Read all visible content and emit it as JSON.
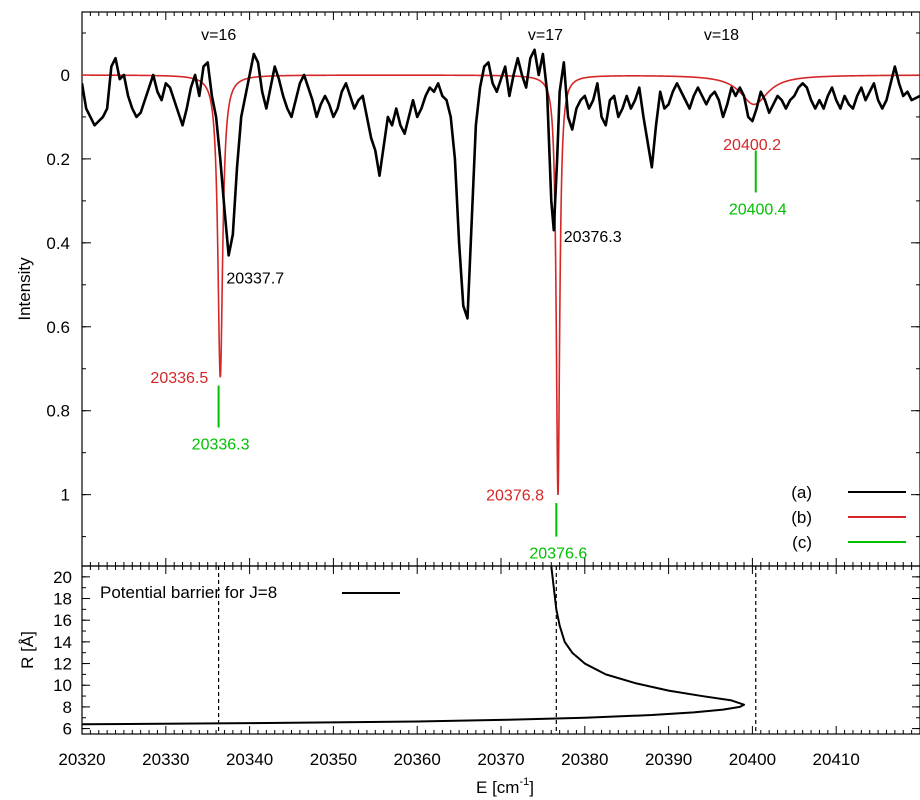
{
  "colors": {
    "a": "#000000",
    "b": "#d62728",
    "c": "#00c000",
    "axis": "#000000"
  },
  "chart_data": [
    {
      "type": "line",
      "panel": "top",
      "ylabel": "Intensity",
      "yaxis_inverted": true,
      "xlim": [
        20320,
        20420
      ],
      "ylim": [
        -0.15,
        1.17
      ],
      "yticks": [
        0,
        0.2,
        0.4,
        0.6,
        0.8,
        1
      ],
      "ytick_labels": [
        "0",
        "0.2",
        "0.4",
        "0.6",
        "0.8",
        "1"
      ],
      "grid": false,
      "legend_position": "bottom-right",
      "legend": [
        {
          "label": "(a)",
          "key": "a"
        },
        {
          "label": "(b)",
          "key": "b"
        },
        {
          "label": "(c)",
          "key": "c"
        }
      ],
      "vibrational_labels": [
        {
          "text": "v=16",
          "x": 20337.5
        },
        {
          "text": "v=17",
          "x": 20376.5
        },
        {
          "text": "v=18",
          "x": 20397.5
        }
      ],
      "series_a_peaks": [
        {
          "x": 20337.7,
          "y": 0.44,
          "label": "20337.7"
        },
        {
          "x": 20376.3,
          "y": 0.37,
          "label": "20376.3"
        }
      ],
      "series_b_lorentzians": [
        {
          "x0": 20336.5,
          "amp": 0.72,
          "gamma": 0.35,
          "label": "20336.5"
        },
        {
          "x0": 20376.8,
          "amp": 1.0,
          "gamma": 0.25,
          "label": "20376.8"
        },
        {
          "x0": 20400.2,
          "amp": 0.07,
          "gamma": 2.0,
          "label": "20400.2"
        }
      ],
      "series_c_markers": [
        {
          "x": 20336.3,
          "y_top": 0.74,
          "y_bottom": 0.84,
          "label": "20336.3"
        },
        {
          "x": 20376.6,
          "y_top": 1.02,
          "y_bottom": 1.1,
          "label": "20376.6"
        },
        {
          "x": 20400.4,
          "y_top": 0.18,
          "y_bottom": 0.28,
          "label": "20400.4"
        }
      ],
      "series_a_points": [
        [
          20320.0,
          0.02
        ],
        [
          20320.5,
          0.08
        ],
        [
          20321.0,
          0.1
        ],
        [
          20321.5,
          0.12
        ],
        [
          20322.0,
          0.11
        ],
        [
          20322.5,
          0.1
        ],
        [
          20323.0,
          0.08
        ],
        [
          20323.5,
          -0.02
        ],
        [
          20324.0,
          -0.04
        ],
        [
          20324.5,
          0.01
        ],
        [
          20325.0,
          0.0
        ],
        [
          20325.5,
          0.05
        ],
        [
          20326.0,
          0.08
        ],
        [
          20326.5,
          0.1
        ],
        [
          20327.0,
          0.09
        ],
        [
          20327.5,
          0.06
        ],
        [
          20328.0,
          0.03
        ],
        [
          20328.5,
          0.0
        ],
        [
          20329.0,
          0.04
        ],
        [
          20329.5,
          0.06
        ],
        [
          20330.0,
          0.02
        ],
        [
          20330.5,
          0.03
        ],
        [
          20331.0,
          0.06
        ],
        [
          20331.5,
          0.09
        ],
        [
          20332.0,
          0.12
        ],
        [
          20332.5,
          0.08
        ],
        [
          20333.0,
          0.03
        ],
        [
          20333.5,
          0.0
        ],
        [
          20334.0,
          0.05
        ],
        [
          20334.5,
          -0.02
        ],
        [
          20335.0,
          -0.03
        ],
        [
          20335.5,
          0.05
        ],
        [
          20336.0,
          0.1
        ],
        [
          20336.5,
          0.2
        ],
        [
          20337.0,
          0.32
        ],
        [
          20337.5,
          0.43
        ],
        [
          20338.0,
          0.38
        ],
        [
          20338.5,
          0.22
        ],
        [
          20339.0,
          0.1
        ],
        [
          20339.5,
          0.05
        ],
        [
          20340.0,
          0.0
        ],
        [
          20340.5,
          -0.05
        ],
        [
          20341.0,
          -0.03
        ],
        [
          20341.5,
          0.04
        ],
        [
          20342.0,
          0.08
        ],
        [
          20342.5,
          0.03
        ],
        [
          20343.0,
          -0.02
        ],
        [
          20343.5,
          0.01
        ],
        [
          20344.0,
          0.05
        ],
        [
          20344.5,
          0.08
        ],
        [
          20345.0,
          0.1
        ],
        [
          20345.5,
          0.06
        ],
        [
          20346.0,
          0.02
        ],
        [
          20346.5,
          0.0
        ],
        [
          20347.0,
          0.03
        ],
        [
          20347.5,
          0.06
        ],
        [
          20348.0,
          0.1
        ],
        [
          20348.5,
          0.07
        ],
        [
          20349.0,
          0.05
        ],
        [
          20349.5,
          0.07
        ],
        [
          20350.0,
          0.1
        ],
        [
          20350.5,
          0.08
        ],
        [
          20351.0,
          0.04
        ],
        [
          20351.5,
          0.02
        ],
        [
          20352.0,
          0.05
        ],
        [
          20352.5,
          0.08
        ],
        [
          20353.0,
          0.06
        ],
        [
          20353.5,
          0.05
        ],
        [
          20354.0,
          0.1
        ],
        [
          20354.5,
          0.15
        ],
        [
          20355.0,
          0.18
        ],
        [
          20355.5,
          0.24
        ],
        [
          20356.0,
          0.17
        ],
        [
          20356.5,
          0.1
        ],
        [
          20357.0,
          0.12
        ],
        [
          20357.5,
          0.08
        ],
        [
          20358.0,
          0.12
        ],
        [
          20358.5,
          0.14
        ],
        [
          20359.0,
          0.1
        ],
        [
          20359.5,
          0.06
        ],
        [
          20360.0,
          0.1
        ],
        [
          20360.5,
          0.08
        ],
        [
          20361.0,
          0.05
        ],
        [
          20361.5,
          0.03
        ],
        [
          20362.0,
          0.04
        ],
        [
          20362.5,
          0.02
        ],
        [
          20363.0,
          0.05
        ],
        [
          20363.5,
          0.06
        ],
        [
          20364.0,
          0.1
        ],
        [
          20364.5,
          0.2
        ],
        [
          20365.0,
          0.4
        ],
        [
          20365.5,
          0.55
        ],
        [
          20366.0,
          0.58
        ],
        [
          20366.5,
          0.35
        ],
        [
          20367.0,
          0.12
        ],
        [
          20367.5,
          0.03
        ],
        [
          20368.0,
          -0.02
        ],
        [
          20368.5,
          -0.03
        ],
        [
          20369.0,
          0.02
        ],
        [
          20369.5,
          0.04
        ],
        [
          20370.0,
          0.01
        ],
        [
          20370.5,
          -0.02
        ],
        [
          20371.0,
          0.05
        ],
        [
          20371.5,
          0.0
        ],
        [
          20372.0,
          -0.04
        ],
        [
          20372.5,
          0.0
        ],
        [
          20373.0,
          0.03
        ],
        [
          20373.5,
          -0.04
        ],
        [
          20374.0,
          -0.06
        ],
        [
          20374.5,
          0.0
        ],
        [
          20375.0,
          -0.05
        ],
        [
          20375.5,
          0.04
        ],
        [
          20376.0,
          0.3
        ],
        [
          20376.3,
          0.37
        ],
        [
          20376.7,
          0.2
        ],
        [
          20377.0,
          0.04
        ],
        [
          20377.5,
          -0.03
        ],
        [
          20378.0,
          0.1
        ],
        [
          20378.5,
          0.13
        ],
        [
          20379.0,
          0.08
        ],
        [
          20379.5,
          0.06
        ],
        [
          20380.0,
          0.05
        ],
        [
          20380.5,
          0.08
        ],
        [
          20381.0,
          0.06
        ],
        [
          20381.5,
          0.02
        ],
        [
          20382.0,
          0.1
        ],
        [
          20382.5,
          0.12
        ],
        [
          20383.0,
          0.06
        ],
        [
          20383.5,
          0.05
        ],
        [
          20384.0,
          0.1
        ],
        [
          20384.5,
          0.08
        ],
        [
          20385.0,
          0.05
        ],
        [
          20385.5,
          0.08
        ],
        [
          20386.0,
          0.06
        ],
        [
          20386.5,
          0.03
        ],
        [
          20387.0,
          0.1
        ],
        [
          20387.5,
          0.16
        ],
        [
          20388.0,
          0.22
        ],
        [
          20388.5,
          0.12
        ],
        [
          20389.0,
          0.04
        ],
        [
          20389.5,
          0.08
        ],
        [
          20390.0,
          0.07
        ],
        [
          20390.5,
          0.04
        ],
        [
          20391.0,
          0.02
        ],
        [
          20391.5,
          0.04
        ],
        [
          20392.0,
          0.06
        ],
        [
          20392.5,
          0.08
        ],
        [
          20393.0,
          0.05
        ],
        [
          20393.5,
          0.03
        ],
        [
          20394.0,
          0.05
        ],
        [
          20394.5,
          0.07
        ],
        [
          20395.0,
          0.05
        ],
        [
          20395.5,
          0.04
        ],
        [
          20396.0,
          0.06
        ],
        [
          20396.5,
          0.1
        ],
        [
          20397.0,
          0.07
        ],
        [
          20397.5,
          0.03
        ],
        [
          20398.0,
          0.05
        ],
        [
          20398.5,
          0.03
        ],
        [
          20399.0,
          0.05
        ],
        [
          20399.5,
          0.1
        ],
        [
          20400.0,
          0.11
        ],
        [
          20400.5,
          0.08
        ],
        [
          20401.0,
          0.04
        ],
        [
          20401.5,
          0.06
        ],
        [
          20402.0,
          0.09
        ],
        [
          20402.5,
          0.07
        ],
        [
          20403.0,
          0.05
        ],
        [
          20403.5,
          0.06
        ],
        [
          20404.0,
          0.08
        ],
        [
          20404.5,
          0.06
        ],
        [
          20405.0,
          0.05
        ],
        [
          20405.5,
          0.03
        ],
        [
          20406.0,
          0.02
        ],
        [
          20406.5,
          0.03
        ],
        [
          20407.0,
          0.06
        ],
        [
          20407.5,
          0.08
        ],
        [
          20408.0,
          0.06
        ],
        [
          20408.5,
          0.08
        ],
        [
          20409.0,
          0.05
        ],
        [
          20409.5,
          0.03
        ],
        [
          20410.0,
          0.06
        ],
        [
          20410.5,
          0.08
        ],
        [
          20411.0,
          0.05
        ],
        [
          20411.5,
          0.07
        ],
        [
          20412.0,
          0.08
        ],
        [
          20412.5,
          0.05
        ],
        [
          20413.0,
          0.03
        ],
        [
          20413.5,
          0.06
        ],
        [
          20414.0,
          0.04
        ],
        [
          20414.5,
          0.02
        ],
        [
          20415.0,
          0.06
        ],
        [
          20415.5,
          0.08
        ],
        [
          20416.0,
          0.06
        ],
        [
          20416.5,
          0.02
        ],
        [
          20417.0,
          -0.02
        ],
        [
          20417.5,
          0.02
        ],
        [
          20418.0,
          0.05
        ],
        [
          20418.5,
          0.04
        ],
        [
          20419.0,
          0.06
        ],
        [
          20420.0,
          0.05
        ]
      ]
    },
    {
      "type": "line",
      "panel": "bottom",
      "title": "Potential barrier for J=8",
      "xlabel_main": "E [cm",
      "xlabel_sup": "-1",
      "xlabel_end": "]",
      "ylabel": "R [Å]",
      "xlim": [
        20320,
        20420
      ],
      "ylim": [
        5.5,
        21
      ],
      "xticks": [
        20320,
        20330,
        20340,
        20350,
        20360,
        20370,
        20380,
        20390,
        20400,
        20410
      ],
      "xtick_labels": [
        "20320",
        "20330",
        "20340",
        "20350",
        "20360",
        "20370",
        "20380",
        "20390",
        "20400",
        "20410"
      ],
      "yticks": [
        6,
        8,
        10,
        12,
        14,
        16,
        18,
        20
      ],
      "ytick_labels": [
        "6",
        "8",
        "10",
        "12",
        "14",
        "16",
        "18",
        "20"
      ],
      "vertical_dashed_lines_x": [
        20336.3,
        20376.6,
        20400.4
      ],
      "barrier_points": [
        [
          20320.0,
          6.4
        ],
        [
          20340.0,
          6.5
        ],
        [
          20360.0,
          6.65
        ],
        [
          20370.0,
          6.8
        ],
        [
          20380.0,
          7.0
        ],
        [
          20388.0,
          7.25
        ],
        [
          20393.0,
          7.5
        ],
        [
          20396.5,
          7.75
        ],
        [
          20398.5,
          8.0
        ],
        [
          20399.0,
          8.2
        ],
        [
          20397.5,
          8.6
        ],
        [
          20394.0,
          9.0
        ],
        [
          20390.0,
          9.5
        ],
        [
          20386.0,
          10.2
        ],
        [
          20382.5,
          11.0
        ],
        [
          20380.0,
          12.0
        ],
        [
          20378.5,
          13.0
        ],
        [
          20377.6,
          14.0
        ],
        [
          20377.0,
          15.5
        ],
        [
          20376.6,
          17.0
        ],
        [
          20376.3,
          19.0
        ],
        [
          20376.0,
          21.0
        ]
      ]
    }
  ]
}
